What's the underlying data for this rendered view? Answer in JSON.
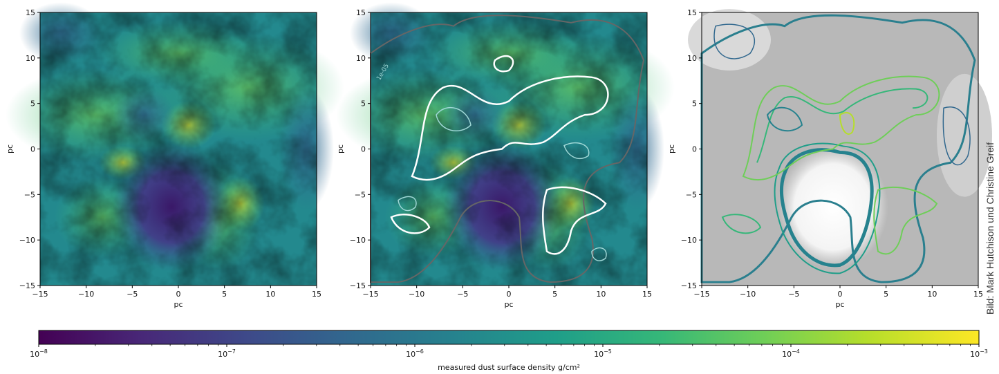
{
  "credit": "Bild: Mark Hutchison und Christine Greif",
  "colorbar": {
    "label": "measured dust surface density g/cm²",
    "scale": "log",
    "range": [
      1e-08,
      0.001
    ],
    "tick_values": [
      1e-08,
      1e-07,
      1e-06,
      1e-05,
      0.0001,
      0.001
    ],
    "colormap": [
      "#440154",
      "#482878",
      "#3e4989",
      "#31688e",
      "#26828e",
      "#1f9e89",
      "#35b779",
      "#6ece58",
      "#b5de2b",
      "#fde725"
    ]
  },
  "chart_data": [
    {
      "type": "heatmap",
      "xlabel": "pc",
      "ylabel": "pc",
      "xlim": [
        -15,
        15
      ],
      "ylim": [
        -15,
        15
      ],
      "xticks": [
        -15,
        -10,
        -5,
        0,
        5,
        10,
        15
      ],
      "yticks": [
        -15,
        -10,
        -5,
        0,
        5,
        10,
        15
      ],
      "xtick_labels": [
        "−15",
        "−10",
        "−5",
        "0",
        "5",
        "10",
        "15"
      ],
      "ytick_labels": [
        "−15",
        "−10",
        "−5",
        "0",
        "5",
        "10",
        "15"
      ],
      "contours": false,
      "features": {
        "low_density_cavity_center": [
          -1,
          -6
        ],
        "dense_ridge_center": [
          1,
          2
        ]
      }
    },
    {
      "type": "heatmap",
      "xlabel": "pc",
      "ylabel": "pc",
      "xlim": [
        -15,
        15
      ],
      "ylim": [
        -15,
        15
      ],
      "xticks": [
        -15,
        -10,
        -5,
        0,
        5,
        10,
        15
      ],
      "yticks": [
        -15,
        -10,
        -5,
        0,
        5,
        10,
        15
      ],
      "xtick_labels": [
        "−15",
        "−10",
        "−5",
        "0",
        "5",
        "10",
        "15"
      ],
      "ytick_labels": [
        "−15",
        "−10",
        "−5",
        "0",
        "5",
        "10",
        "15"
      ],
      "contours": true,
      "contour_label": "1e-05",
      "contour_colors": [
        "#666666",
        "#ffffff",
        "#9fd7d6"
      ]
    },
    {
      "type": "heatmap",
      "xlabel": "pc",
      "ylabel": "pc",
      "xlim": [
        -15,
        15
      ],
      "ylim": [
        -15,
        15
      ],
      "xticks": [
        -15,
        -10,
        -5,
        0,
        5,
        10,
        15
      ],
      "yticks": [
        -15,
        -10,
        -5,
        0,
        5,
        10,
        15
      ],
      "xtick_labels": [
        "−15",
        "−10",
        "−5",
        "0",
        "5",
        "10",
        "15"
      ],
      "ytick_labels": [
        "−15",
        "−10",
        "−5",
        "0",
        "5",
        "10",
        "15"
      ],
      "contours": true,
      "background": "grayscale",
      "contour_colormap": [
        "#31688e",
        "#26828e",
        "#1f9e89",
        "#35b779",
        "#6ece58",
        "#b5de2b"
      ]
    }
  ]
}
